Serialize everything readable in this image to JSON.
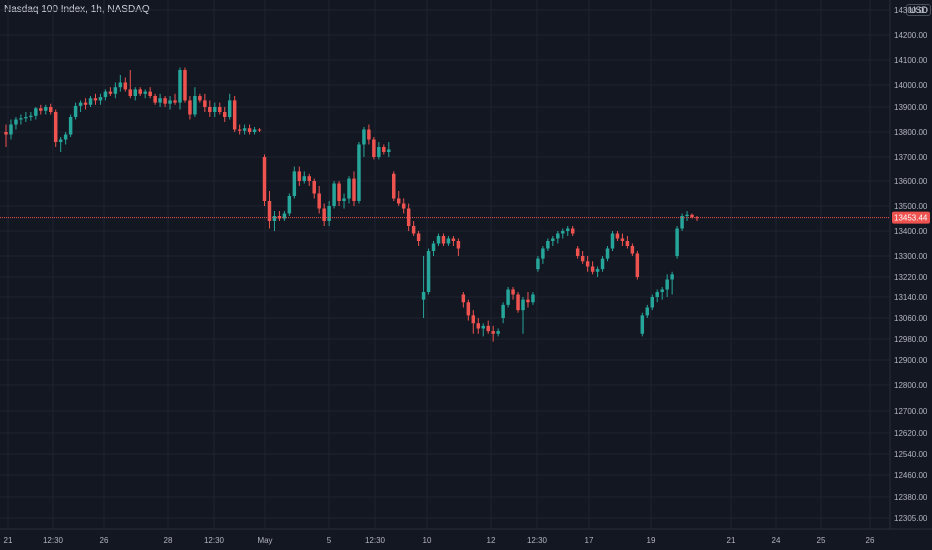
{
  "title": "Nasdaq 100 Index, 1h, NASDAQ",
  "currency": "USD",
  "colors": {
    "background": "#131722",
    "up": "#26a69a",
    "down": "#ef5350",
    "grid": "#1f2330",
    "axis_text": "#b2b5be"
  },
  "last_price": {
    "value": 13453.44,
    "label": "13453.44"
  },
  "chart_data": {
    "type": "candlestick",
    "title": "Nasdaq 100 Index, 1h, NASDAQ",
    "y_ticks": [
      "14300.00",
      "14200.00",
      "14100.00",
      "14000.00",
      "13900.00",
      "13800.00",
      "13700.00",
      "13600.00",
      "13500.00",
      "13400.00",
      "13300.00",
      "13220.00",
      "13140.00",
      "13060.00",
      "12980.00",
      "12900.00",
      "12800.00",
      "12700.00",
      "12620.00",
      "12540.00",
      "12460.00",
      "12380.00",
      "12305.00"
    ],
    "x_ticks": [
      "21",
      "12:30",
      "26",
      "28",
      "12:30",
      "May",
      "5",
      "12:30",
      "10",
      "12",
      "12:30",
      "17",
      "19",
      "21",
      "24",
      "25",
      "26"
    ],
    "grid": true,
    "candles": [
      {
        "o": 13800,
        "h": 13830,
        "l": 13740,
        "c": 13790
      },
      {
        "o": 13790,
        "h": 13850,
        "l": 13770,
        "c": 13830
      },
      {
        "o": 13830,
        "h": 13860,
        "l": 13810,
        "c": 13850
      },
      {
        "o": 13850,
        "h": 13870,
        "l": 13830,
        "c": 13855
      },
      {
        "o": 13855,
        "h": 13880,
        "l": 13840,
        "c": 13860
      },
      {
        "o": 13860,
        "h": 13880,
        "l": 13845,
        "c": 13865
      },
      {
        "o": 13865,
        "h": 13900,
        "l": 13850,
        "c": 13895
      },
      {
        "o": 13895,
        "h": 13910,
        "l": 13870,
        "c": 13885
      },
      {
        "o": 13885,
        "h": 13910,
        "l": 13870,
        "c": 13900
      },
      {
        "o": 13900,
        "h": 13915,
        "l": 13870,
        "c": 13880
      },
      {
        "o": 13880,
        "h": 13890,
        "l": 13740,
        "c": 13760
      },
      {
        "o": 13760,
        "h": 13780,
        "l": 13720,
        "c": 13770
      },
      {
        "o": 13770,
        "h": 13800,
        "l": 13750,
        "c": 13790
      },
      {
        "o": 13790,
        "h": 13870,
        "l": 13780,
        "c": 13860
      },
      {
        "o": 13860,
        "h": 13920,
        "l": 13850,
        "c": 13905
      },
      {
        "o": 13905,
        "h": 13930,
        "l": 13880,
        "c": 13920
      },
      {
        "o": 13920,
        "h": 13940,
        "l": 13890,
        "c": 13910
      },
      {
        "o": 13910,
        "h": 13950,
        "l": 13900,
        "c": 13940
      },
      {
        "o": 13940,
        "h": 13960,
        "l": 13910,
        "c": 13930
      },
      {
        "o": 13930,
        "h": 13960,
        "l": 13910,
        "c": 13945
      },
      {
        "o": 13945,
        "h": 13980,
        "l": 13930,
        "c": 13970
      },
      {
        "o": 13970,
        "h": 13990,
        "l": 13950,
        "c": 13960
      },
      {
        "o": 13960,
        "h": 14010,
        "l": 13940,
        "c": 13990
      },
      {
        "o": 13990,
        "h": 14040,
        "l": 13970,
        "c": 14010
      },
      {
        "o": 14010,
        "h": 14030,
        "l": 13970,
        "c": 13980
      },
      {
        "o": 13980,
        "h": 14060,
        "l": 13940,
        "c": 13950
      },
      {
        "o": 13950,
        "h": 13990,
        "l": 13930,
        "c": 13980
      },
      {
        "o": 13980,
        "h": 13990,
        "l": 13950,
        "c": 13960
      },
      {
        "o": 13960,
        "h": 13980,
        "l": 13940,
        "c": 13970
      },
      {
        "o": 13970,
        "h": 13990,
        "l": 13940,
        "c": 13950
      },
      {
        "o": 13950,
        "h": 13960,
        "l": 13910,
        "c": 13920
      },
      {
        "o": 13920,
        "h": 13960,
        "l": 13900,
        "c": 13940
      },
      {
        "o": 13940,
        "h": 13950,
        "l": 13900,
        "c": 13915
      },
      {
        "o": 13915,
        "h": 13950,
        "l": 13890,
        "c": 13930
      },
      {
        "o": 13930,
        "h": 13960,
        "l": 13910,
        "c": 13920
      },
      {
        "o": 13920,
        "h": 14070,
        "l": 13890,
        "c": 14060
      },
      {
        "o": 14060,
        "h": 14070,
        "l": 13920,
        "c": 13930
      },
      {
        "o": 13930,
        "h": 13950,
        "l": 13850,
        "c": 13870
      },
      {
        "o": 13870,
        "h": 13990,
        "l": 13860,
        "c": 13950
      },
      {
        "o": 13950,
        "h": 13960,
        "l": 13920,
        "c": 13930
      },
      {
        "o": 13930,
        "h": 13960,
        "l": 13880,
        "c": 13900
      },
      {
        "o": 13900,
        "h": 13930,
        "l": 13860,
        "c": 13880
      },
      {
        "o": 13880,
        "h": 13920,
        "l": 13860,
        "c": 13900
      },
      {
        "o": 13900,
        "h": 13920,
        "l": 13870,
        "c": 13880
      },
      {
        "o": 13880,
        "h": 13900,
        "l": 13840,
        "c": 13860
      },
      {
        "o": 13860,
        "h": 13960,
        "l": 13850,
        "c": 13930
      },
      {
        "o": 13930,
        "h": 13950,
        "l": 13800,
        "c": 13810
      },
      {
        "o": 13810,
        "h": 13830,
        "l": 13790,
        "c": 13805
      },
      {
        "o": 13805,
        "h": 13830,
        "l": 13790,
        "c": 13815
      },
      {
        "o": 13815,
        "h": 13830,
        "l": 13790,
        "c": 13800
      },
      {
        "o": 13800,
        "h": 13820,
        "l": 13790,
        "c": 13810
      },
      {
        "o": 13810,
        "h": 13815,
        "l": 13800,
        "c": 13808
      },
      {
        "o": 13700,
        "h": 13710,
        "l": 13500,
        "c": 13520
      },
      {
        "o": 13520,
        "h": 13560,
        "l": 13410,
        "c": 13440
      },
      {
        "o": 13440,
        "h": 13480,
        "l": 13400,
        "c": 13460
      },
      {
        "o": 13460,
        "h": 13480,
        "l": 13440,
        "c": 13450
      },
      {
        "o": 13450,
        "h": 13480,
        "l": 13440,
        "c": 13470
      },
      {
        "o": 13470,
        "h": 13550,
        "l": 13460,
        "c": 13540
      },
      {
        "o": 13540,
        "h": 13660,
        "l": 13530,
        "c": 13640
      },
      {
        "o": 13640,
        "h": 13660,
        "l": 13580,
        "c": 13600
      },
      {
        "o": 13600,
        "h": 13640,
        "l": 13590,
        "c": 13620
      },
      {
        "o": 13620,
        "h": 13630,
        "l": 13580,
        "c": 13600
      },
      {
        "o": 13600,
        "h": 13610,
        "l": 13530,
        "c": 13550
      },
      {
        "o": 13550,
        "h": 13580,
        "l": 13470,
        "c": 13490
      },
      {
        "o": 13490,
        "h": 13510,
        "l": 13420,
        "c": 13440
      },
      {
        "o": 13440,
        "h": 13520,
        "l": 13420,
        "c": 13500
      },
      {
        "o": 13500,
        "h": 13600,
        "l": 13490,
        "c": 13590
      },
      {
        "o": 13590,
        "h": 13600,
        "l": 13500,
        "c": 13520
      },
      {
        "o": 13520,
        "h": 13550,
        "l": 13490,
        "c": 13530
      },
      {
        "o": 13530,
        "h": 13620,
        "l": 13510,
        "c": 13610
      },
      {
        "o": 13610,
        "h": 13640,
        "l": 13500,
        "c": 13520
      },
      {
        "o": 13520,
        "h": 13760,
        "l": 13510,
        "c": 13750
      },
      {
        "o": 13750,
        "h": 13820,
        "l": 13700,
        "c": 13810
      },
      {
        "o": 13810,
        "h": 13830,
        "l": 13750,
        "c": 13770
      },
      {
        "o": 13770,
        "h": 13780,
        "l": 13690,
        "c": 13700
      },
      {
        "o": 13700,
        "h": 13760,
        "l": 13690,
        "c": 13740
      },
      {
        "o": 13740,
        "h": 13750,
        "l": 13710,
        "c": 13720
      },
      {
        "o": 13720,
        "h": 13760,
        "l": 13700,
        "c": 13730
      },
      {
        "o": 13630,
        "h": 13640,
        "l": 13520,
        "c": 13530
      },
      {
        "o": 13530,
        "h": 13560,
        "l": 13500,
        "c": 13510
      },
      {
        "o": 13510,
        "h": 13530,
        "l": 13470,
        "c": 13490
      },
      {
        "o": 13490,
        "h": 13510,
        "l": 13400,
        "c": 13420
      },
      {
        "o": 13420,
        "h": 13440,
        "l": 13380,
        "c": 13390
      },
      {
        "o": 13390,
        "h": 13400,
        "l": 13340,
        "c": 13360
      },
      {
        "o": 13130,
        "h": 13300,
        "l": 13060,
        "c": 13160
      },
      {
        "o": 13160,
        "h": 13330,
        "l": 13150,
        "c": 13320
      },
      {
        "o": 13320,
        "h": 13360,
        "l": 13300,
        "c": 13350
      },
      {
        "o": 13350,
        "h": 13390,
        "l": 13340,
        "c": 13380
      },
      {
        "o": 13380,
        "h": 13390,
        "l": 13340,
        "c": 13350
      },
      {
        "o": 13350,
        "h": 13380,
        "l": 13340,
        "c": 13370
      },
      {
        "o": 13370,
        "h": 13380,
        "l": 13340,
        "c": 13360
      },
      {
        "o": 13360,
        "h": 13370,
        "l": 13300,
        "c": 13330
      },
      {
        "o": 13150,
        "h": 13160,
        "l": 13100,
        "c": 13120
      },
      {
        "o": 13120,
        "h": 13130,
        "l": 13050,
        "c": 13070
      },
      {
        "o": 13070,
        "h": 13090,
        "l": 13000,
        "c": 13040
      },
      {
        "o": 13040,
        "h": 13060,
        "l": 13000,
        "c": 13020
      },
      {
        "o": 13020,
        "h": 13040,
        "l": 12990,
        "c": 13030
      },
      {
        "o": 13030,
        "h": 13050,
        "l": 13000,
        "c": 13010
      },
      {
        "o": 13010,
        "h": 13030,
        "l": 12970,
        "c": 13000
      },
      {
        "o": 13000,
        "h": 13020,
        "l": 12990,
        "c": 13010
      },
      {
        "o": 13060,
        "h": 13120,
        "l": 13040,
        "c": 13110
      },
      {
        "o": 13110,
        "h": 13180,
        "l": 13100,
        "c": 13170
      },
      {
        "o": 13170,
        "h": 13180,
        "l": 13130,
        "c": 13150
      },
      {
        "o": 13150,
        "h": 13160,
        "l": 13080,
        "c": 13090
      },
      {
        "o": 13090,
        "h": 13140,
        "l": 13000,
        "c": 13130
      },
      {
        "o": 13130,
        "h": 13160,
        "l": 13100,
        "c": 13120
      },
      {
        "o": 13120,
        "h": 13160,
        "l": 13110,
        "c": 13150
      },
      {
        "o": 13250,
        "h": 13300,
        "l": 13240,
        "c": 13290
      },
      {
        "o": 13290,
        "h": 13340,
        "l": 13270,
        "c": 13330
      },
      {
        "o": 13330,
        "h": 13370,
        "l": 13320,
        "c": 13360
      },
      {
        "o": 13360,
        "h": 13380,
        "l": 13340,
        "c": 13370
      },
      {
        "o": 13370,
        "h": 13400,
        "l": 13350,
        "c": 13390
      },
      {
        "o": 13390,
        "h": 13410,
        "l": 13370,
        "c": 13400
      },
      {
        "o": 13400,
        "h": 13420,
        "l": 13380,
        "c": 13410
      },
      {
        "o": 13410,
        "h": 13420,
        "l": 13380,
        "c": 13390
      },
      {
        "o": 13330,
        "h": 13340,
        "l": 13290,
        "c": 13300
      },
      {
        "o": 13300,
        "h": 13320,
        "l": 13270,
        "c": 13280
      },
      {
        "o": 13280,
        "h": 13300,
        "l": 13240,
        "c": 13260
      },
      {
        "o": 13260,
        "h": 13280,
        "l": 13230,
        "c": 13240
      },
      {
        "o": 13240,
        "h": 13260,
        "l": 13220,
        "c": 13250
      },
      {
        "o": 13250,
        "h": 13300,
        "l": 13240,
        "c": 13290
      },
      {
        "o": 13290,
        "h": 13340,
        "l": 13280,
        "c": 13330
      },
      {
        "o": 13330,
        "h": 13400,
        "l": 13320,
        "c": 13390
      },
      {
        "o": 13390,
        "h": 13400,
        "l": 13360,
        "c": 13370
      },
      {
        "o": 13370,
        "h": 13390,
        "l": 13340,
        "c": 13360
      },
      {
        "o": 13360,
        "h": 13380,
        "l": 13330,
        "c": 13340
      },
      {
        "o": 13340,
        "h": 13350,
        "l": 13300,
        "c": 13310
      },
      {
        "o": 13310,
        "h": 13320,
        "l": 13210,
        "c": 13220
      },
      {
        "o": 13000,
        "h": 13080,
        "l": 12990,
        "c": 13070
      },
      {
        "o": 13070,
        "h": 13110,
        "l": 13060,
        "c": 13100
      },
      {
        "o": 13100,
        "h": 13150,
        "l": 13090,
        "c": 13140
      },
      {
        "o": 13140,
        "h": 13170,
        "l": 13120,
        "c": 13160
      },
      {
        "o": 13160,
        "h": 13180,
        "l": 13130,
        "c": 13170
      },
      {
        "o": 13170,
        "h": 13230,
        "l": 13140,
        "c": 13210
      },
      {
        "o": 13210,
        "h": 13240,
        "l": 13150,
        "c": 13230
      },
      {
        "o": 13300,
        "h": 13420,
        "l": 13290,
        "c": 13410
      },
      {
        "o": 13410,
        "h": 13470,
        "l": 13400,
        "c": 13460
      },
      {
        "o": 13460,
        "h": 13480,
        "l": 13440,
        "c": 13465
      },
      {
        "o": 13465,
        "h": 13470,
        "l": 13450,
        "c": 13455
      },
      {
        "o": 13455,
        "h": 13460,
        "l": 13440,
        "c": 13453
      }
    ]
  }
}
